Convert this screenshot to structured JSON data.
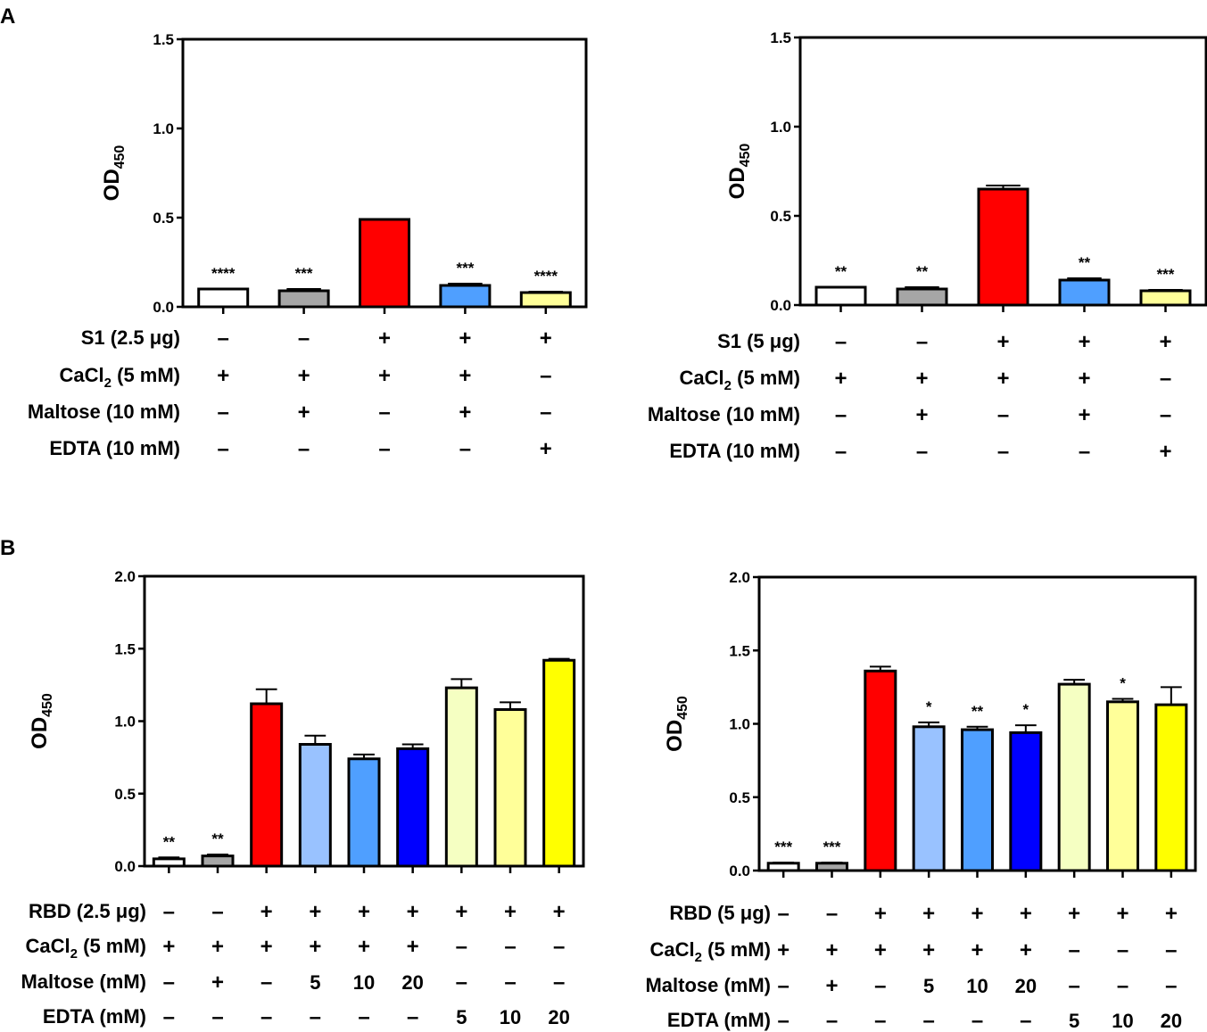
{
  "panel_labels": [
    "A",
    "B"
  ],
  "chart_data": [
    {
      "type": "bar",
      "panel": "A",
      "ylabel": "OD",
      "ylabel_sub": "450",
      "ylim": [
        0,
        1.5
      ],
      "yticks": [
        "0.0",
        "0.5",
        "1.0",
        "1.5"
      ],
      "ytick_values": [
        0,
        0.5,
        1.0,
        1.5
      ],
      "values": [
        0.1,
        0.09,
        0.49,
        0.12,
        0.08
      ],
      "errors": [
        0.0,
        0.01,
        0.0,
        0.01,
        0.005
      ],
      "colors": [
        "#ffffff",
        "#a6a6a6",
        "#ff0000",
        "#4f9fff",
        "#ffff99"
      ],
      "significance": [
        "****",
        "***",
        "",
        "***",
        "****"
      ],
      "rows": [
        {
          "label": "S1 (2.5 μg)",
          "values": [
            "–",
            "–",
            "+",
            "+",
            "+"
          ]
        },
        {
          "label": "CaCl",
          "sub": "2",
          "suffix": " (5 mM)",
          "values": [
            "+",
            "+",
            "+",
            "+",
            "–"
          ]
        },
        {
          "label": "Maltose (10 mM)",
          "values": [
            "–",
            "+",
            "–",
            "+",
            "–"
          ]
        },
        {
          "label": "EDTA (10 mM)",
          "values": [
            "–",
            "–",
            "–",
            "–",
            "+"
          ]
        }
      ]
    },
    {
      "type": "bar",
      "panel": "A",
      "ylabel": "OD",
      "ylabel_sub": "450",
      "ylim": [
        0,
        1.5
      ],
      "yticks": [
        "0.0",
        "0.5",
        "1.0",
        "1.5"
      ],
      "ytick_values": [
        0,
        0.5,
        1.0,
        1.5
      ],
      "values": [
        0.1,
        0.09,
        0.65,
        0.14,
        0.08
      ],
      "errors": [
        0.0,
        0.01,
        0.02,
        0.01,
        0.005
      ],
      "colors": [
        "#ffffff",
        "#a6a6a6",
        "#ff0000",
        "#4f9fff",
        "#ffff99"
      ],
      "significance": [
        "**",
        "**",
        "",
        "**",
        "***"
      ],
      "rows": [
        {
          "label": "S1 (5 μg)",
          "values": [
            "–",
            "–",
            "+",
            "+",
            "+"
          ]
        },
        {
          "label": "CaCl",
          "sub": "2",
          "suffix": " (5 mM)",
          "values": [
            "+",
            "+",
            "+",
            "+",
            "–"
          ]
        },
        {
          "label": "Maltose (10 mM)",
          "values": [
            "–",
            "+",
            "–",
            "+",
            "–"
          ]
        },
        {
          "label": "EDTA (10 mM)",
          "values": [
            "–",
            "–",
            "–",
            "–",
            "+"
          ]
        }
      ]
    },
    {
      "type": "bar",
      "panel": "B",
      "ylabel": "OD",
      "ylabel_sub": "450",
      "ylim": [
        0,
        2.0
      ],
      "yticks": [
        "0.0",
        "0.5",
        "1.0",
        "1.5",
        "2.0"
      ],
      "ytick_values": [
        0,
        0.5,
        1.0,
        1.5,
        2.0
      ],
      "values": [
        0.05,
        0.07,
        1.12,
        0.84,
        0.74,
        0.81,
        1.23,
        1.08,
        1.42
      ],
      "errors": [
        0.01,
        0.01,
        0.1,
        0.06,
        0.03,
        0.03,
        0.06,
        0.05,
        0.01
      ],
      "colors": [
        "#ffffff",
        "#a6a6a6",
        "#ff0000",
        "#99c2ff",
        "#4f9fff",
        "#0000ff",
        "#f5ffc2",
        "#ffff99",
        "#ffff00"
      ],
      "significance": [
        "**",
        "**",
        "",
        "",
        "",
        "",
        "",
        "",
        ""
      ],
      "rows": [
        {
          "label": "RBD (2.5 μg)",
          "values": [
            "–",
            "–",
            "+",
            "+",
            "+",
            "+",
            "+",
            "+",
            "+"
          ]
        },
        {
          "label": "CaCl",
          "sub": "2",
          "suffix": " (5 mM)",
          "values": [
            "+",
            "+",
            "+",
            "+",
            "+",
            "+",
            "–",
            "–",
            "–"
          ]
        },
        {
          "label": "Maltose (mM)",
          "values": [
            "–",
            "+",
            "–",
            "5",
            "10",
            "20",
            "–",
            "–",
            "–"
          ]
        },
        {
          "label": "EDTA (mM)",
          "values": [
            "–",
            "–",
            "–",
            "–",
            "–",
            "–",
            "5",
            "10",
            "20"
          ]
        }
      ]
    },
    {
      "type": "bar",
      "panel": "B",
      "ylabel": "OD",
      "ylabel_sub": "450",
      "ylim": [
        0,
        2.0
      ],
      "yticks": [
        "0.0",
        "0.5",
        "1.0",
        "1.5",
        "2.0"
      ],
      "ytick_values": [
        0,
        0.5,
        1.0,
        1.5,
        2.0
      ],
      "values": [
        0.05,
        0.05,
        1.36,
        0.98,
        0.96,
        0.94,
        1.27,
        1.15,
        1.13
      ],
      "errors": [
        0.005,
        0.005,
        0.03,
        0.03,
        0.02,
        0.05,
        0.03,
        0.02,
        0.12
      ],
      "colors": [
        "#ffffff",
        "#a6a6a6",
        "#ff0000",
        "#99c2ff",
        "#4f9fff",
        "#0000ff",
        "#f5ffc2",
        "#ffff99",
        "#ffff00"
      ],
      "significance": [
        "***",
        "***",
        "",
        "*",
        "**",
        "*",
        "",
        "*",
        ""
      ],
      "rows": [
        {
          "label": "RBD (5 μg)",
          "values": [
            "–",
            "–",
            "+",
            "+",
            "+",
            "+",
            "+",
            "+",
            "+"
          ]
        },
        {
          "label": "CaCl",
          "sub": "2",
          "suffix": " (5 mM)",
          "values": [
            "+",
            "+",
            "+",
            "+",
            "+",
            "+",
            "–",
            "–",
            "–"
          ]
        },
        {
          "label": "Maltose (mM)",
          "values": [
            "–",
            "+",
            "–",
            "5",
            "10",
            "20",
            "–",
            "–",
            "–"
          ]
        },
        {
          "label": "EDTA (mM)",
          "values": [
            "–",
            "–",
            "–",
            "–",
            "–",
            "–",
            "5",
            "10",
            "20"
          ]
        }
      ]
    }
  ]
}
